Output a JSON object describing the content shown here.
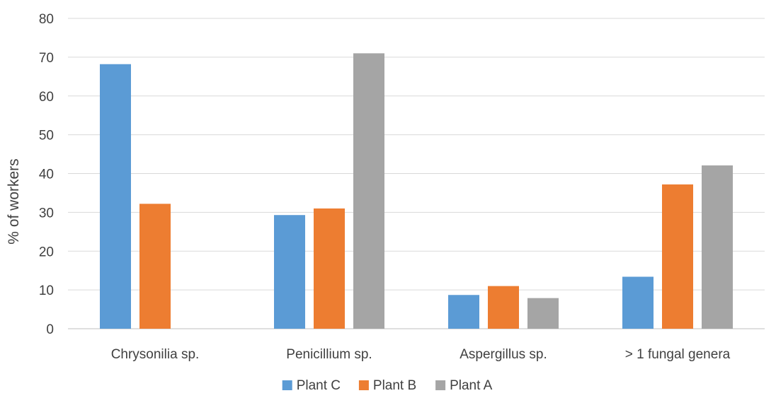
{
  "chart_data": {
    "type": "bar",
    "title": "",
    "xlabel": "",
    "ylabel": "% of workers",
    "categories": [
      "Chrysonilia sp.",
      "Penicillium sp.",
      "Aspergillus sp.",
      "> 1 fungal genera"
    ],
    "series": [
      {
        "name": "Plant C",
        "color": "#5B9BD5",
        "values": [
          68.2,
          29.3,
          8.7,
          13.4
        ]
      },
      {
        "name": "Plant B",
        "color": "#ED7D31",
        "values": [
          32.2,
          31.0,
          11.0,
          37.2
        ]
      },
      {
        "name": "Plant A",
        "color": "#A5A5A5",
        "values": [
          0,
          71.0,
          7.9,
          42.1
        ]
      }
    ],
    "ylim": [
      0,
      80
    ],
    "yticks": [
      0,
      10,
      20,
      30,
      40,
      50,
      60,
      70,
      80
    ],
    "grid": true,
    "legend": "bottom-center"
  }
}
